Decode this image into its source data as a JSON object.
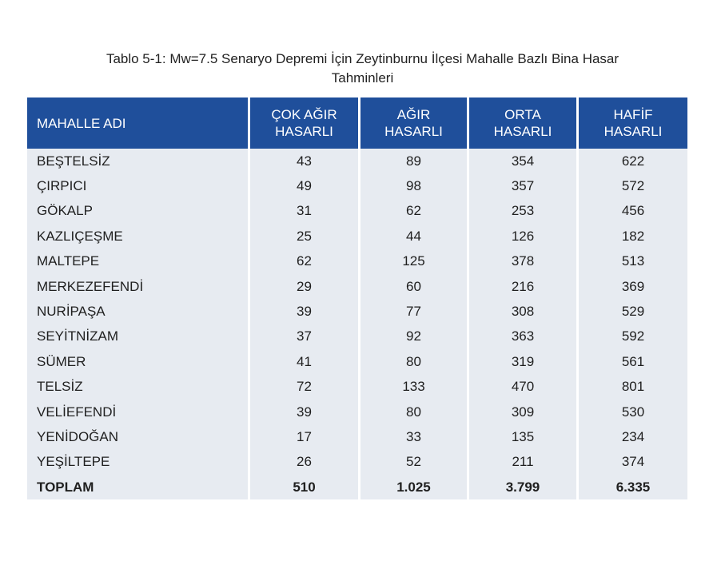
{
  "caption": {
    "line1": "Tablo 5-1: Mw=7.5 Senaryo Depremi İçin Zeytinburnu İlçesi Mahalle Bazlı Bina Hasar",
    "line2": "Tahminleri"
  },
  "table": {
    "header": {
      "col0": "MAHALLE ADI",
      "col1": {
        "l1": "ÇOK AĞIR",
        "l2": "HASARLI"
      },
      "col2": {
        "l1": "AĞIR",
        "l2": "HASARLI"
      },
      "col3": {
        "l1": "ORTA",
        "l2": "HASARLI"
      },
      "col4": {
        "l1": "HAFİF",
        "l2": "HASARLI"
      }
    },
    "rows": [
      [
        "BEŞTELSİZ",
        "43",
        "89",
        "354",
        "622"
      ],
      [
        "ÇIRPICI",
        "49",
        "98",
        "357",
        "572"
      ],
      [
        "GÖKALP",
        "31",
        "62",
        "253",
        "456"
      ],
      [
        "KAZLIÇEŞME",
        "25",
        "44",
        "126",
        "182"
      ],
      [
        "MALTEPE",
        "62",
        "125",
        "378",
        "513"
      ],
      [
        "MERKEZEFENDİ",
        "29",
        "60",
        "216",
        "369"
      ],
      [
        "NURİPAŞA",
        "39",
        "77",
        "308",
        "529"
      ],
      [
        "SEYİTNİZAM",
        "37",
        "92",
        "363",
        "592"
      ],
      [
        "SÜMER",
        "41",
        "80",
        "319",
        "561"
      ],
      [
        "TELSİZ",
        "72",
        "133",
        "470",
        "801"
      ],
      [
        "VELİEFENDİ",
        "39",
        "80",
        "309",
        "530"
      ],
      [
        "YENİDOĞAN",
        "17",
        "33",
        "135",
        "234"
      ],
      [
        "YEŞİLTEPE",
        "26",
        "52",
        "211",
        "374"
      ]
    ],
    "total": [
      "TOPLAM",
      "510",
      "1.025",
      "3.799",
      "6.335"
    ]
  },
  "colors": {
    "header_bg": "#1f4f9b",
    "row_bg": "#e7ebf1"
  }
}
